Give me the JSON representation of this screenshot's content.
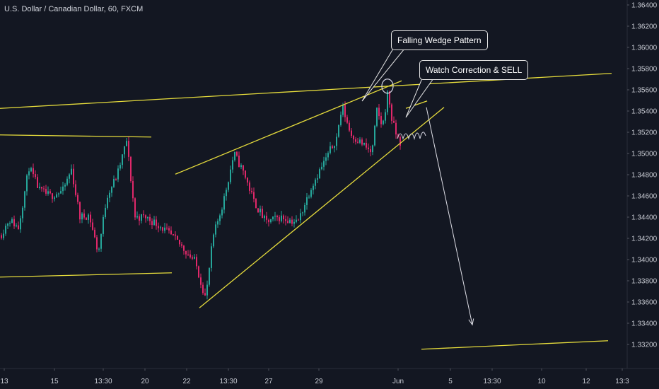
{
  "header": {
    "symbol_title": "U.S. Dollar / Canadian Dollar, 60, FXCM"
  },
  "colors": {
    "background": "#131722",
    "up_candle": "#26a69a",
    "down_candle": "#e0286a",
    "trendline": "#e6dc3c",
    "callout_border": "#e6e6e6",
    "axis_text": "#c8cbd3"
  },
  "annotations": {
    "callout_1": "Falling Wedge Pattern",
    "callout_2": "Watch Correction & SELL"
  },
  "chart_data": {
    "type": "candlestick",
    "title": "U.S. Dollar / Canadian Dollar, 60, FXCM",
    "y_axis": {
      "ticks": [
        "1.36400",
        "1.36200",
        "1.36000",
        "1.35800",
        "1.35600",
        "1.35400",
        "1.35200",
        "1.35000",
        "1.34800",
        "1.34600",
        "1.34400",
        "1.34200",
        "1.34000",
        "1.33800",
        "1.33600",
        "1.33400",
        "1.33200"
      ],
      "range": [
        1.3318,
        1.3642
      ]
    },
    "x_axis": {
      "ticks": [
        "13",
        "15",
        "13:30",
        "20",
        "22",
        "13:30",
        "27",
        "29",
        "Jun",
        "5",
        "13:30",
        "10",
        "12",
        "13:3"
      ]
    },
    "price_path": [
      [
        0,
        1.3423
      ],
      [
        12,
        1.3438
      ],
      [
        25,
        1.343
      ],
      [
        40,
        1.3487
      ],
      [
        55,
        1.3465
      ],
      [
        70,
        1.346
      ],
      [
        88,
        1.3465
      ],
      [
        100,
        1.3485
      ],
      [
        112,
        1.344
      ],
      [
        125,
        1.3442
      ],
      [
        138,
        1.3406
      ],
      [
        150,
        1.346
      ],
      [
        165,
        1.348
      ],
      [
        178,
        1.3512
      ],
      [
        190,
        1.344
      ],
      [
        205,
        1.344
      ],
      [
        225,
        1.3432
      ],
      [
        245,
        1.342
      ],
      [
        262,
        1.3408
      ],
      [
        275,
        1.3398
      ],
      [
        290,
        1.3363
      ],
      [
        300,
        1.342
      ],
      [
        315,
        1.3455
      ],
      [
        330,
        1.35
      ],
      [
        345,
        1.348
      ],
      [
        358,
        1.3455
      ],
      [
        375,
        1.3435
      ],
      [
        395,
        1.344
      ],
      [
        420,
        1.3435
      ],
      [
        440,
        1.347
      ],
      [
        460,
        1.3495
      ],
      [
        475,
        1.3515
      ],
      [
        483,
        1.3545
      ],
      [
        495,
        1.3518
      ],
      [
        510,
        1.351
      ],
      [
        525,
        1.35
      ],
      [
        532,
        1.354
      ],
      [
        540,
        1.3525
      ],
      [
        548,
        1.356
      ],
      [
        552,
        1.3535
      ],
      [
        558,
        1.352
      ],
      [
        565,
        1.351
      ]
    ],
    "trendlines": [
      {
        "x1": 0,
        "y1": 1.35425,
        "x2": 865,
        "y2": 1.35755
      },
      {
        "x1": 0,
        "y1": 1.35175,
        "x2": 214,
        "y2": 1.35155
      },
      {
        "x1": 0,
        "y1": 1.33835,
        "x2": 243,
        "y2": 1.33875
      },
      {
        "x1": 248,
        "y1": 1.34805,
        "x2": 568,
        "y2": 1.35685
      },
      {
        "x1": 282,
        "y1": 1.33545,
        "x2": 628,
        "y2": 1.35435
      },
      {
        "x1": 574,
        "y1": 1.35425,
        "x2": 604,
        "y2": 1.35495
      },
      {
        "x1": 596,
        "y1": 1.33155,
        "x2": 860,
        "y2": 1.33235
      }
    ],
    "projection": {
      "x1": 603,
      "y1": 1.35435,
      "x2": 668,
      "y2": 1.33385
    },
    "highlight_circle": {
      "x": 548,
      "y": 1.35635
    }
  }
}
